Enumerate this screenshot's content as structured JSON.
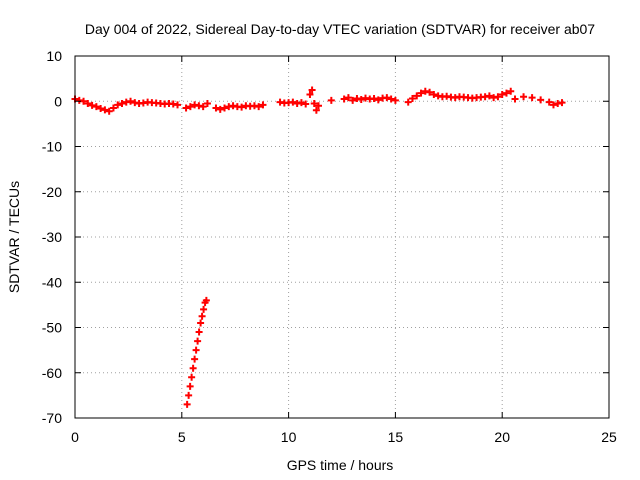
{
  "chart_data": {
    "type": "scatter",
    "title": "Day 004 of 2022, Sidereal Day-to-day VTEC variation (SDTVAR) for receiver ab07",
    "xlabel": "GPS time / hours",
    "ylabel": "SDTVAR / TECUs",
    "xlim": [
      0,
      25
    ],
    "ylim": [
      -70,
      10
    ],
    "xticks": [
      0,
      5,
      10,
      15,
      20,
      25
    ],
    "yticks": [
      10,
      0,
      -10,
      -20,
      -30,
      -40,
      -50,
      -60,
      -70
    ],
    "grid": true,
    "marker": "plus",
    "color": "#ff0000",
    "series": [
      {
        "name": "SDTVAR",
        "x": [
          0.0,
          0.2,
          0.4,
          0.6,
          0.8,
          1.0,
          1.2,
          1.4,
          1.6,
          1.8,
          2.0,
          2.2,
          2.4,
          2.6,
          2.8,
          3.0,
          3.2,
          3.4,
          3.6,
          3.8,
          4.0,
          4.2,
          4.4,
          4.6,
          4.8,
          5.2,
          5.4,
          5.6,
          5.8,
          6.0,
          6.2,
          6.6,
          6.8,
          7.0,
          7.2,
          7.4,
          7.6,
          7.8,
          8.0,
          8.2,
          8.4,
          8.6,
          8.8,
          9.6,
          9.8,
          10.0,
          10.2,
          10.4,
          10.6,
          10.8,
          11.0,
          11.1,
          11.2,
          11.3,
          11.4,
          12.0,
          12.6,
          12.8,
          13.0,
          13.2,
          13.4,
          13.6,
          13.8,
          14.0,
          14.2,
          14.4,
          14.6,
          14.8,
          15.0,
          15.6,
          15.8,
          16.0,
          16.2,
          16.4,
          16.6,
          16.8,
          17.0,
          17.2,
          17.4,
          17.6,
          17.8,
          18.0,
          18.2,
          18.4,
          18.6,
          18.8,
          19.0,
          19.2,
          19.4,
          19.6,
          19.8,
          20.0,
          20.2,
          20.4,
          20.6,
          21.0,
          21.4,
          21.8,
          22.2,
          22.4,
          22.6,
          22.8,
          5.25,
          5.32,
          5.39,
          5.46,
          5.53,
          5.6,
          5.67,
          5.74,
          5.81,
          5.88,
          5.95,
          6.02,
          6.09,
          6.15
        ],
        "y": [
          0.5,
          0.2,
          0.0,
          -0.5,
          -0.9,
          -1.2,
          -1.6,
          -1.9,
          -2.2,
          -1.5,
          -0.8,
          -0.5,
          -0.2,
          0.0,
          -0.3,
          -0.5,
          -0.4,
          -0.2,
          -0.3,
          -0.4,
          -0.5,
          -0.6,
          -0.5,
          -0.6,
          -0.8,
          -1.5,
          -1.2,
          -0.8,
          -1.0,
          -1.2,
          -0.5,
          -1.5,
          -1.8,
          -1.5,
          -1.2,
          -1.0,
          -1.2,
          -1.3,
          -1.0,
          -1.1,
          -1.0,
          -1.2,
          -0.8,
          -0.2,
          -0.4,
          -0.3,
          -0.2,
          -0.5,
          -0.3,
          -0.6,
          1.5,
          2.5,
          -0.5,
          -2.0,
          -1.0,
          0.2,
          0.5,
          0.8,
          0.2,
          0.6,
          0.4,
          0.7,
          0.5,
          0.6,
          0.3,
          0.7,
          0.8,
          0.5,
          0.2,
          -0.2,
          0.6,
          1.2,
          1.8,
          2.2,
          2.0,
          1.5,
          1.2,
          1.0,
          1.1,
          0.9,
          0.8,
          1.0,
          0.9,
          0.8,
          0.7,
          0.8,
          0.9,
          1.0,
          1.2,
          0.8,
          1.0,
          1.5,
          1.8,
          2.2,
          0.5,
          1.0,
          0.8,
          0.3,
          -0.2,
          -0.8,
          -0.5,
          -0.3,
          -67.0,
          -65.0,
          -63.0,
          -61.0,
          -59.0,
          -57.0,
          -55.0,
          -53.0,
          -51.0,
          -49.0,
          -47.5,
          -46.0,
          -44.5,
          -44.0
        ]
      }
    ]
  }
}
